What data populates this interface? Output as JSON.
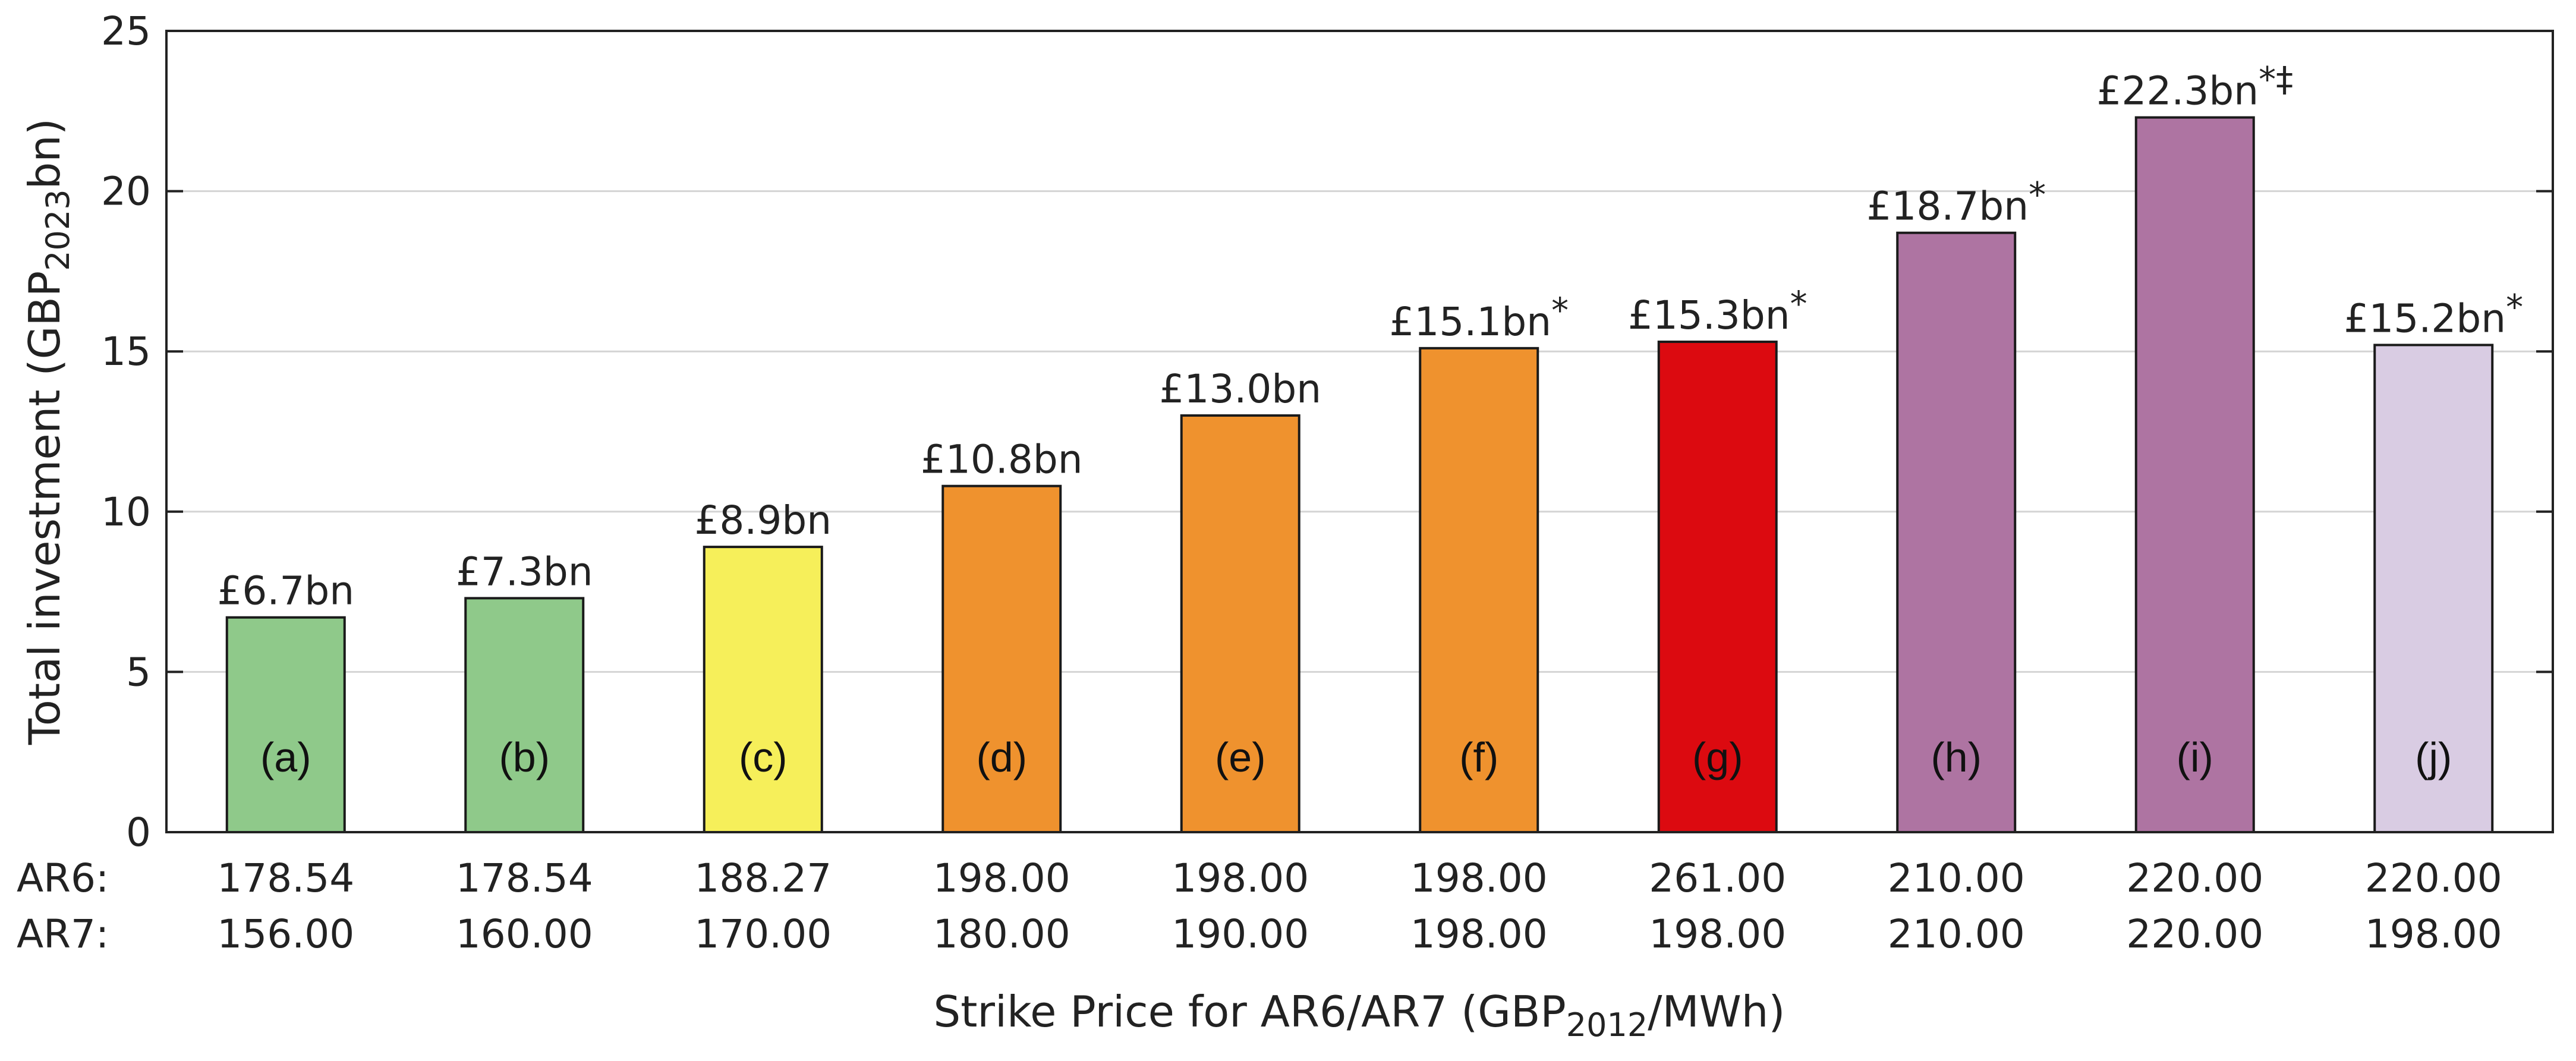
{
  "chart_data": {
    "type": "bar",
    "title": "",
    "ylabel": "Total investment (GBP",
    "ylabel_sub": "2023",
    "ylabel_end": "bn)",
    "xlabel": "Strike Price for AR6/AR7 (GBP",
    "xlabel_sub": "2012",
    "xlabel_end": "/MWh)",
    "ylim": [
      0,
      25
    ],
    "yticks": [
      0,
      5,
      10,
      15,
      20,
      25
    ],
    "grid": true,
    "categories": [
      "(a)",
      "(b)",
      "(c)",
      "(d)",
      "(e)",
      "(f)",
      "(g)",
      "(h)",
      "(i)",
      "(j)"
    ],
    "values": [
      6.7,
      7.3,
      8.9,
      10.8,
      13.0,
      15.1,
      15.3,
      18.7,
      22.3,
      15.2
    ],
    "value_labels": [
      "£6.7bn",
      "£7.3bn",
      "£8.9bn",
      "£10.8bn",
      "£13.0bn",
      "£15.1bn",
      "£15.3bn",
      "£18.7bn",
      "£22.3bn",
      "£15.2bn"
    ],
    "value_marks": [
      "",
      "",
      "",
      "",
      "",
      "*",
      "*",
      "*",
      "*‡",
      "*"
    ],
    "colors": [
      "#8fc98a",
      "#8fc98a",
      "#f6ef5a",
      "#ef922e",
      "#ef922e",
      "#ef922e",
      "#dc0a10",
      "#ae74a2",
      "#ae74a2",
      "#d9cce3"
    ],
    "rows": [
      {
        "label": "AR6:",
        "values": [
          "178.54",
          "178.54",
          "188.27",
          "198.00",
          "198.00",
          "198.00",
          "261.00",
          "210.00",
          "220.00",
          "220.00"
        ]
      },
      {
        "label": "AR7:",
        "values": [
          "156.00",
          "160.00",
          "170.00",
          "180.00",
          "190.00",
          "198.00",
          "198.00",
          "210.00",
          "220.00",
          "198.00"
        ]
      }
    ]
  }
}
